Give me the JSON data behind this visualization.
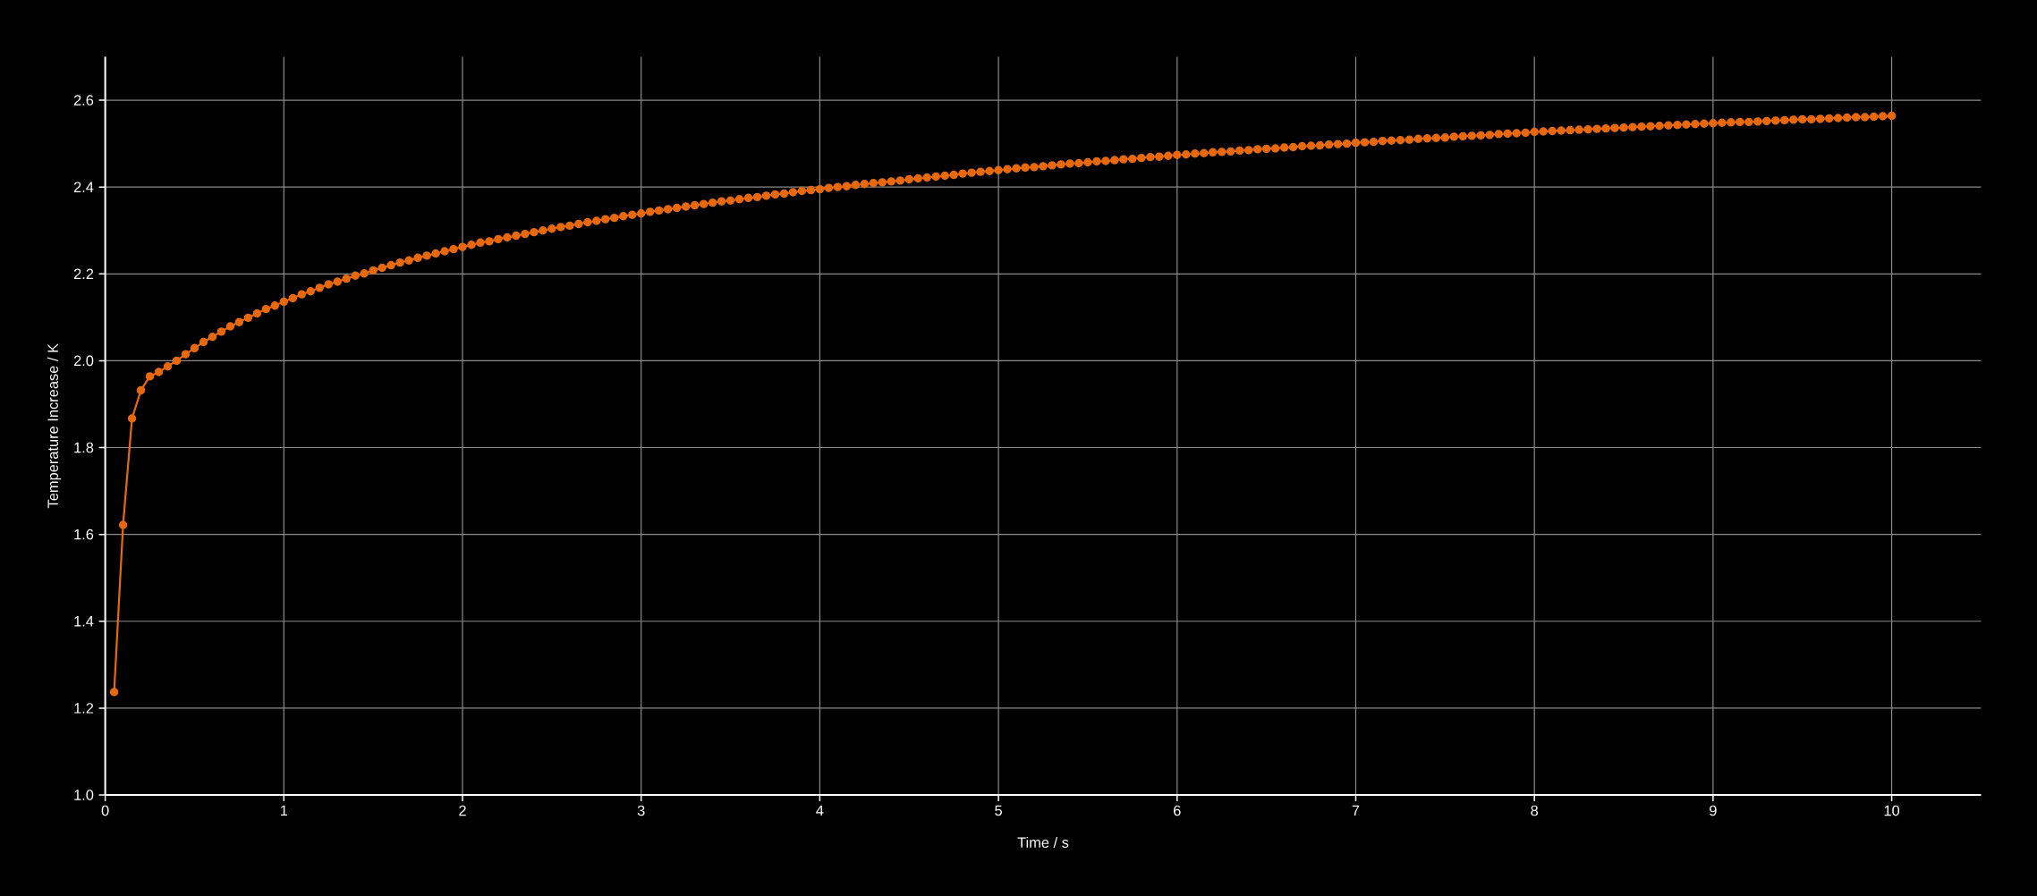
{
  "chart_data": {
    "type": "line",
    "xlabel": "Time / s",
    "ylabel": "Temperature Increase / K",
    "xlim": [
      0,
      10.5
    ],
    "ylim": [
      1.0,
      2.7
    ],
    "xticks": [
      0,
      1,
      2,
      3,
      4,
      5,
      6,
      7,
      8,
      9,
      10
    ],
    "yticks": [
      {
        "value": 1,
        "label": "1.0"
      },
      1.2,
      1.4,
      1.6,
      1.8,
      {
        "value": 2,
        "label": "2.0"
      },
      2.2,
      2.4,
      2.6
    ],
    "grid": true,
    "marker": "circle",
    "line_style": "solid",
    "x": [
      0.05,
      0.1,
      0.15,
      0.2,
      0.25,
      0.3,
      0.35,
      0.4,
      0.45,
      0.5,
      0.55,
      0.6,
      0.65,
      0.7,
      0.75,
      0.8,
      0.85,
      0.9,
      0.95,
      1,
      1.05,
      1.1,
      1.15,
      1.2,
      1.25,
      1.3,
      1.35,
      1.4,
      1.45,
      1.5,
      1.55,
      1.6,
      1.65,
      1.7,
      1.75,
      1.8,
      1.85,
      1.9,
      1.95,
      2,
      2.05,
      2.1,
      2.15,
      2.2,
      2.25,
      2.3,
      2.35,
      2.4,
      2.45,
      2.5,
      2.55,
      2.6,
      2.65,
      2.7,
      2.75,
      2.8,
      2.85,
      2.9,
      2.95,
      3,
      3.05,
      3.1,
      3.15,
      3.2,
      3.25,
      3.3,
      3.35,
      3.4,
      3.45,
      3.5,
      3.55,
      3.6,
      3.65,
      3.7,
      3.75,
      3.8,
      3.85,
      3.9,
      3.95,
      4,
      4.05,
      4.1,
      4.15,
      4.2,
      4.25,
      4.3,
      4.35,
      4.4,
      4.45,
      4.5,
      4.55,
      4.6,
      4.65,
      4.7,
      4.75,
      4.8,
      4.85,
      4.9,
      4.95,
      5,
      5.05,
      5.1,
      5.15,
      5.2,
      5.25,
      5.3,
      5.35,
      5.4,
      5.45,
      5.5,
      5.55,
      5.6,
      5.65,
      5.7,
      5.75,
      5.8,
      5.85,
      5.9,
      5.95,
      6,
      6.05,
      6.1,
      6.15,
      6.2,
      6.25,
      6.3,
      6.35,
      6.4,
      6.45,
      6.5,
      6.55,
      6.6,
      6.65,
      6.7,
      6.75,
      6.8,
      6.85,
      6.9,
      6.95,
      7,
      7.05,
      7.1,
      7.15,
      7.2,
      7.25,
      7.3,
      7.35,
      7.4,
      7.45,
      7.5,
      7.55,
      7.6,
      7.65,
      7.7,
      7.75,
      7.8,
      7.85,
      7.9,
      7.95,
      8,
      8.05,
      8.1,
      8.15,
      8.2,
      8.25,
      8.3,
      8.35,
      8.4,
      8.45,
      8.5,
      8.55,
      8.6,
      8.65,
      8.7,
      8.75,
      8.8,
      8.85,
      8.9,
      8.95,
      9,
      9.05,
      9.1,
      9.15,
      9.2,
      9.25,
      9.3,
      9.35,
      9.4,
      9.45,
      9.5,
      9.55,
      9.6,
      9.65,
      9.7,
      9.75,
      9.8,
      9.85,
      9.9,
      9.95,
      10
    ],
    "series": [
      {
        "color": "#e8690c",
        "values": [
          1.237,
          1.622,
          1.867,
          1.932,
          1.964,
          1.974,
          1.987,
          2.0,
          2.015,
          2.029,
          2.043,
          2.055,
          2.067,
          2.079,
          2.089,
          2.099,
          2.109,
          2.119,
          2.127,
          2.136,
          2.144,
          2.153,
          2.16,
          2.168,
          2.176,
          2.182,
          2.189,
          2.196,
          2.201,
          2.208,
          2.214,
          2.22,
          2.226,
          2.231,
          2.237,
          2.242,
          2.247,
          2.252,
          2.257,
          2.262,
          2.267,
          2.272,
          2.275,
          2.28,
          2.284,
          2.288,
          2.292,
          2.296,
          2.3,
          2.304,
          2.308,
          2.311,
          2.315,
          2.319,
          2.322,
          2.326,
          2.329,
          2.333,
          2.336,
          2.339,
          2.343,
          2.346,
          2.349,
          2.352,
          2.355,
          2.358,
          2.361,
          2.364,
          2.367,
          2.369,
          2.372,
          2.375,
          2.377,
          2.38,
          2.383,
          2.385,
          2.388,
          2.391,
          2.393,
          2.395,
          2.398,
          2.4,
          2.402,
          2.405,
          2.407,
          2.409,
          2.411,
          2.413,
          2.415,
          2.418,
          2.42,
          2.422,
          2.424,
          2.426,
          2.428,
          2.431,
          2.433,
          2.435,
          2.437,
          2.439,
          2.441,
          2.443,
          2.445,
          2.446,
          2.448,
          2.45,
          2.452,
          2.454,
          2.455,
          2.457,
          2.459,
          2.46,
          2.462,
          2.464,
          2.465,
          2.467,
          2.469,
          2.47,
          2.472,
          2.474,
          2.475,
          2.477,
          2.478,
          2.48,
          2.481,
          2.482,
          2.484,
          2.485,
          2.487,
          2.488,
          2.489,
          2.491,
          2.492,
          2.494,
          2.495,
          2.496,
          2.498,
          2.499,
          2.5,
          2.502,
          2.503,
          2.504,
          2.506,
          2.507,
          2.508,
          2.509,
          2.511,
          2.512,
          2.513,
          2.514,
          2.516,
          2.517,
          2.518,
          2.519,
          2.52,
          2.522,
          2.523,
          2.524,
          2.525,
          2.527,
          2.528,
          2.529,
          2.53,
          2.531,
          2.532,
          2.533,
          2.534,
          2.535,
          2.536,
          2.537,
          2.538,
          2.539,
          2.54,
          2.541,
          2.542,
          2.543,
          2.544,
          2.545,
          2.546,
          2.547,
          2.548,
          2.549,
          2.55,
          2.55,
          2.551,
          2.552,
          2.553,
          2.554,
          2.555,
          2.556,
          2.556,
          2.557,
          2.558,
          2.559,
          2.56,
          2.561,
          2.561,
          2.562,
          2.563,
          2.564
        ]
      }
    ]
  }
}
